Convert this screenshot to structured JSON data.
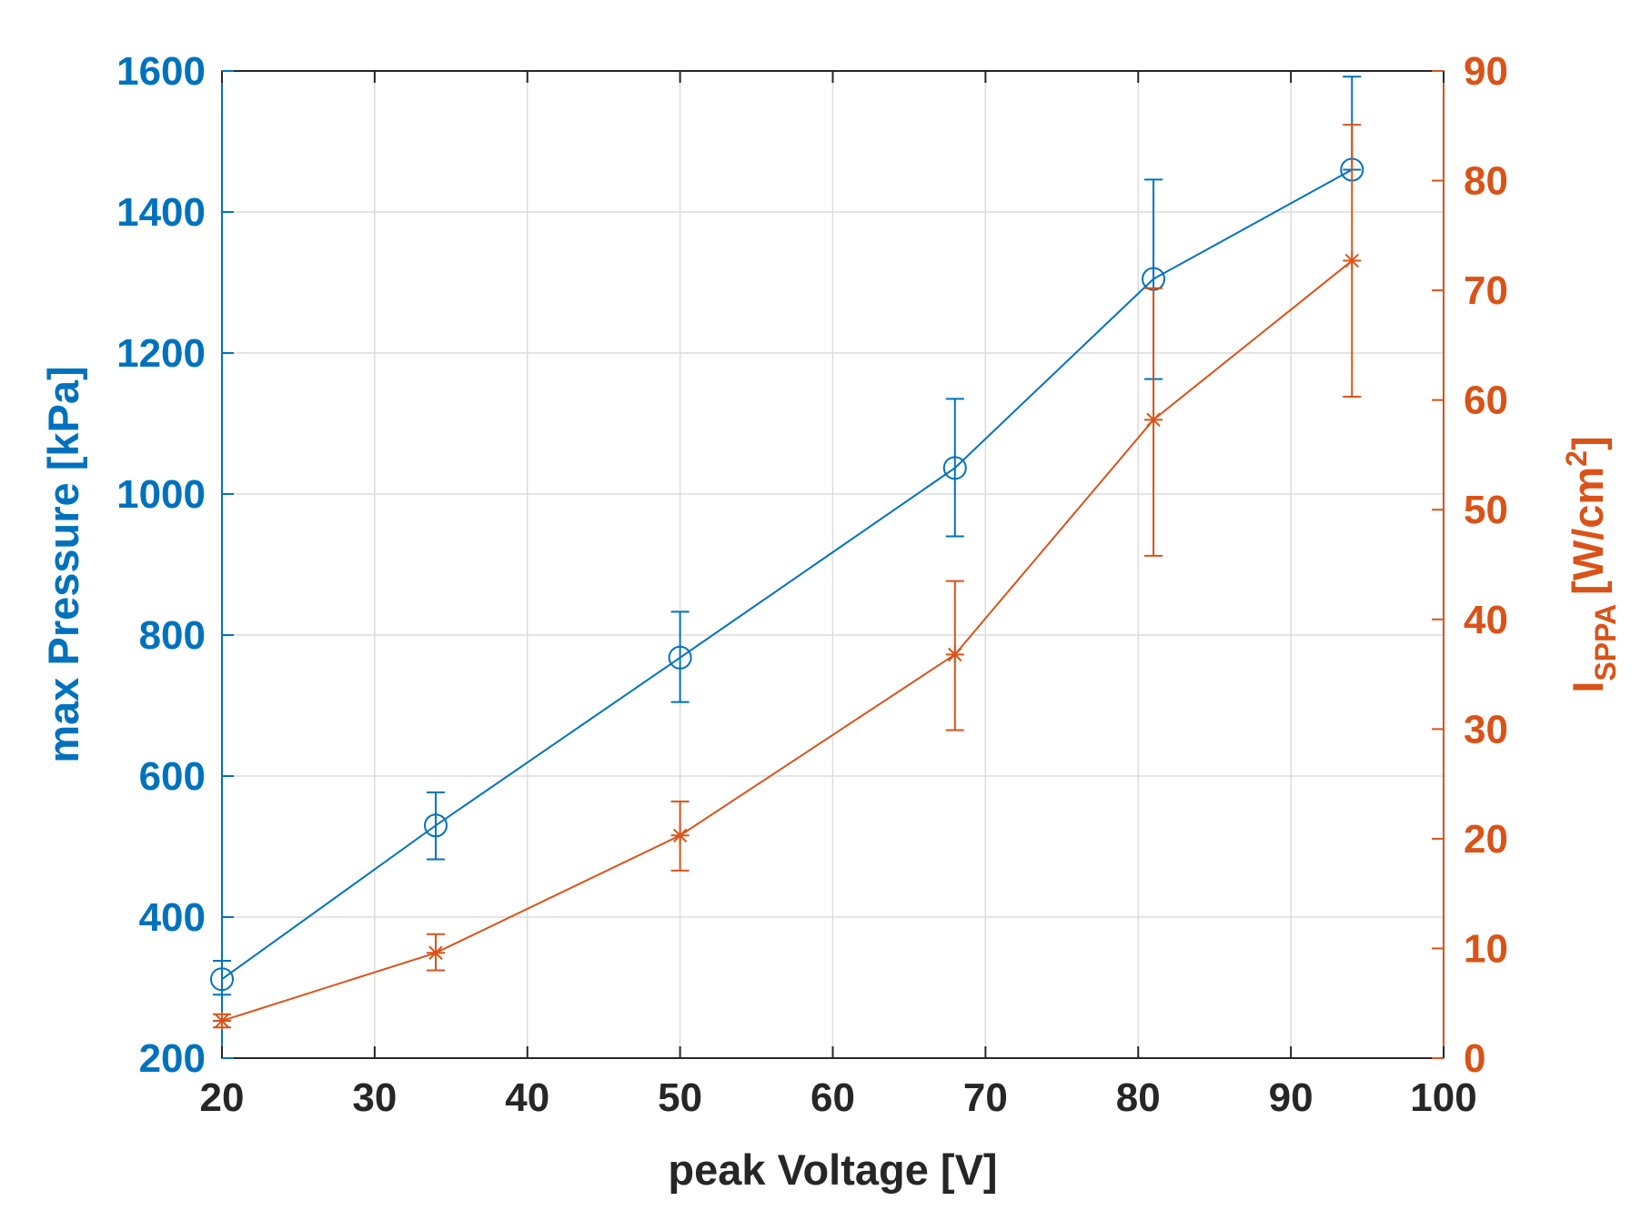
{
  "chart_data": {
    "type": "line",
    "title": "",
    "xlabel": "peak Voltage [V]",
    "ylabel_left": "max Pressure [kPa]",
    "ylabel_right": {
      "main": "I",
      "subscript": "SPPA",
      "unit_prefix": "[W/cm",
      "superscript": "2",
      "unit_suffix": "]"
    },
    "xlim": [
      20,
      100
    ],
    "ylim_left": [
      200,
      1600
    ],
    "ylim_right": [
      0,
      90
    ],
    "x_ticks": [
      20,
      30,
      40,
      50,
      60,
      70,
      80,
      90,
      100
    ],
    "y_left_ticks": [
      200,
      400,
      600,
      800,
      1000,
      1200,
      1400,
      1600
    ],
    "y_right_ticks": [
      0,
      10,
      20,
      30,
      40,
      50,
      60,
      70,
      80,
      90
    ],
    "grid": true,
    "series": [
      {
        "name": "max Pressure",
        "axis": "left",
        "color": "#0072BD",
        "marker": "circle",
        "x": [
          20,
          34,
          50,
          68,
          81,
          94
        ],
        "y": [
          312,
          530,
          768,
          1037,
          1305,
          1460
        ],
        "err_low": [
          290,
          482,
          705,
          940,
          1163,
          1460
        ],
        "err_high": [
          338,
          577,
          833,
          1135,
          1446,
          1592
        ]
      },
      {
        "name": "I_SPPA",
        "axis": "right",
        "color": "#D95319",
        "marker": "asterisk",
        "x": [
          20,
          34,
          50,
          68,
          81,
          94
        ],
        "y": [
          3.4,
          9.6,
          20.3,
          36.8,
          58.2,
          72.7
        ],
        "err_low": [
          2.8,
          8.0,
          17.1,
          29.9,
          45.8,
          60.3
        ],
        "err_high": [
          4.0,
          11.3,
          23.4,
          43.5,
          70.2,
          85.1
        ]
      }
    ]
  },
  "colors": {
    "left_axis": "#0072BD",
    "right_axis": "#D95319",
    "x_axis": "#262626"
  }
}
